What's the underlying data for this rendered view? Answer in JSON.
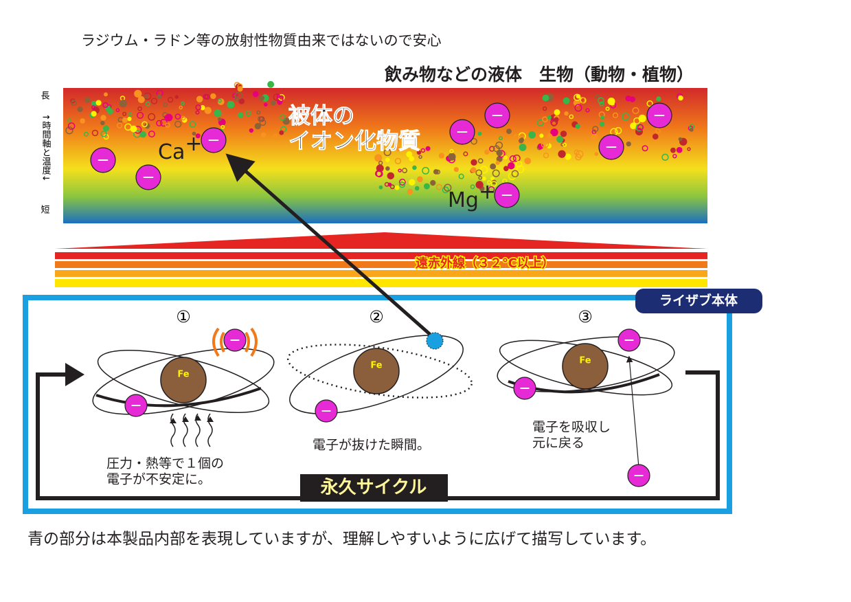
{
  "header": {
    "note": "ラジウム・ラドン等の放射性物質由来ではないので安心",
    "subject": "飲み物などの液体　生物（動物・植物）"
  },
  "axis": {
    "top": "長",
    "middle": "↑時間軸と温度↓",
    "bottom": "短"
  },
  "substance": {
    "lines": [
      "被体の",
      "イオン化物質"
    ],
    "ions": [
      {
        "symbol": "Ca",
        "charge": "+"
      },
      {
        "symbol": "Mg",
        "charge": "+"
      }
    ]
  },
  "far_infrared": "遠赤外線（３２℃以上）",
  "device": {
    "label": "ライザブ本体",
    "steps": [
      {
        "number": "①",
        "nucleus": "Fe",
        "caption": [
          "圧力・熱等で１個の",
          "電子が不安定に。"
        ]
      },
      {
        "number": "②",
        "nucleus": "Fe",
        "caption": [
          "電子が抜けた瞬間。"
        ]
      },
      {
        "number": "③",
        "nucleus": "Fe",
        "caption": [
          "電子を吸収し",
          "元に戻る"
        ]
      }
    ],
    "cycle": "永久サイクル"
  },
  "footer": "青の部分は本製品内部を表現していますが、理解しやすいように広げて描写しています。"
}
